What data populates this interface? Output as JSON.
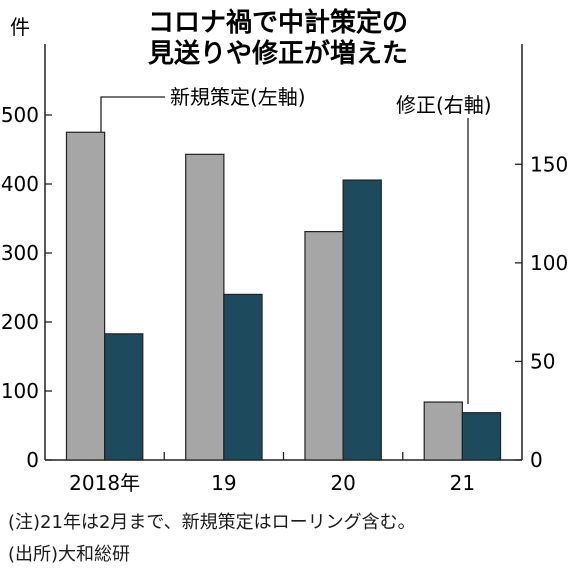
{
  "chart_data": {
    "type": "bar",
    "title_lines": [
      "コロナ禍で中計策定の",
      "見送りや修正が増えた"
    ],
    "left_unit": "件",
    "categories": [
      "2018年",
      "19",
      "20",
      "21"
    ],
    "series": [
      {
        "name": "新規策定(左軸)",
        "axis": "left",
        "color": "#a6a6a6",
        "values": [
          475,
          443,
          331,
          84
        ]
      },
      {
        "name": "修正(右軸)",
        "axis": "right",
        "color": "#1d4a5c",
        "values": [
          64,
          84,
          142,
          24
        ]
      }
    ],
    "left_axis": {
      "ylim": [
        0,
        500
      ],
      "ticks": [
        "0",
        "100",
        "200",
        "300",
        "400",
        "500"
      ]
    },
    "right_axis": {
      "ylim": [
        0,
        175
      ],
      "ticks": [
        "0",
        "50",
        "100",
        "150"
      ]
    },
    "grid": false
  },
  "notes": {
    "note": "(注)21年は2月まで、新規策定はローリング含む。",
    "source": "(出所)大和総研"
  }
}
